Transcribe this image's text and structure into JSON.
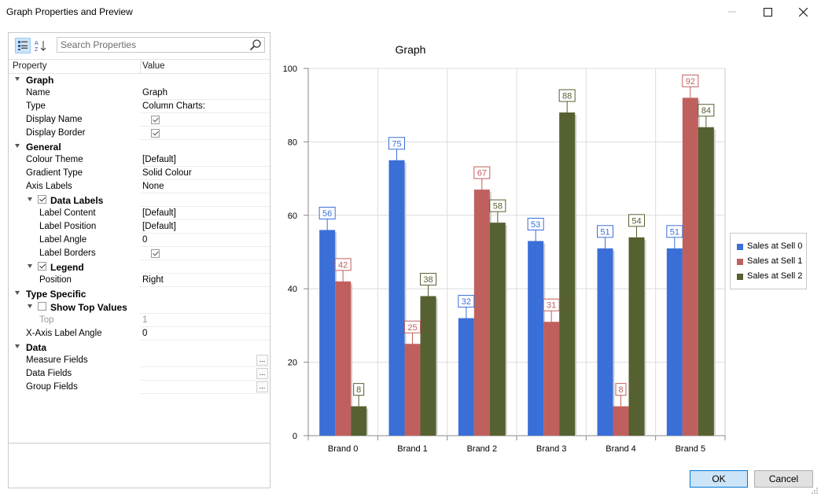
{
  "window": {
    "title": "Graph Properties and Preview"
  },
  "toolbar": {
    "search_placeholder": "Search Properties"
  },
  "grid": {
    "col_property": "Property",
    "col_value": "Value",
    "rows": [
      {
        "kind": "cat",
        "label": "Graph"
      },
      {
        "kind": "prop",
        "label": "Name",
        "value": "Graph"
      },
      {
        "kind": "prop",
        "label": "Type",
        "value": "Column Charts:"
      },
      {
        "kind": "propchk",
        "label": "Display Name"
      },
      {
        "kind": "propchk",
        "label": "Display Border"
      },
      {
        "kind": "cat",
        "label": "General"
      },
      {
        "kind": "prop",
        "label": "Colour Theme",
        "value": "[Default]"
      },
      {
        "kind": "prop",
        "label": "Gradient Type",
        "value": "Solid Colour"
      },
      {
        "kind": "prop",
        "label": "Axis Labels",
        "value": "None"
      },
      {
        "kind": "sub",
        "label": "Data Labels",
        "checked": true
      },
      {
        "kind": "prop2",
        "label": "Label Content",
        "value": "[Default]"
      },
      {
        "kind": "prop2",
        "label": "Label Position",
        "value": "[Default]"
      },
      {
        "kind": "prop2",
        "label": "Label Angle",
        "value": "0"
      },
      {
        "kind": "prop2chk",
        "label": "Label Borders"
      },
      {
        "kind": "sub",
        "label": "Legend",
        "checked": true
      },
      {
        "kind": "prop2",
        "label": "Position",
        "value": "Right"
      },
      {
        "kind": "cat",
        "label": "Type Specific"
      },
      {
        "kind": "sub",
        "label": "Show Top Values",
        "checked": false
      },
      {
        "kind": "prop2dis",
        "label": "Top",
        "value": "1"
      },
      {
        "kind": "prop",
        "label": "X-Axis Label Angle",
        "value": "0"
      },
      {
        "kind": "cat",
        "label": "Data"
      },
      {
        "kind": "propell",
        "label": "Measure Fields"
      },
      {
        "kind": "propell",
        "label": "Data Fields"
      },
      {
        "kind": "propell",
        "label": "Group Fields"
      }
    ]
  },
  "chart_data": {
    "type": "bar",
    "title": "Graph",
    "categories": [
      "Brand 0",
      "Brand 1",
      "Brand 2",
      "Brand 3",
      "Brand 4",
      "Brand 5"
    ],
    "series": [
      {
        "name": "Sales at Sell 0",
        "color": "#3a6fd8",
        "values": [
          56,
          75,
          32,
          53,
          51,
          51
        ]
      },
      {
        "name": "Sales at Sell 1",
        "color": "#c0605e",
        "values": [
          42,
          25,
          67,
          31,
          8,
          92
        ]
      },
      {
        "name": "Sales at Sell 2",
        "color": "#556131",
        "values": [
          8,
          38,
          58,
          88,
          54,
          84
        ]
      }
    ],
    "ylim": [
      0,
      100
    ],
    "yticks": [
      0,
      20,
      40,
      60,
      80,
      100
    ],
    "grid": true,
    "legend_position": "right",
    "data_labels": true
  },
  "buttons": {
    "ok": "OK",
    "cancel": "Cancel"
  }
}
